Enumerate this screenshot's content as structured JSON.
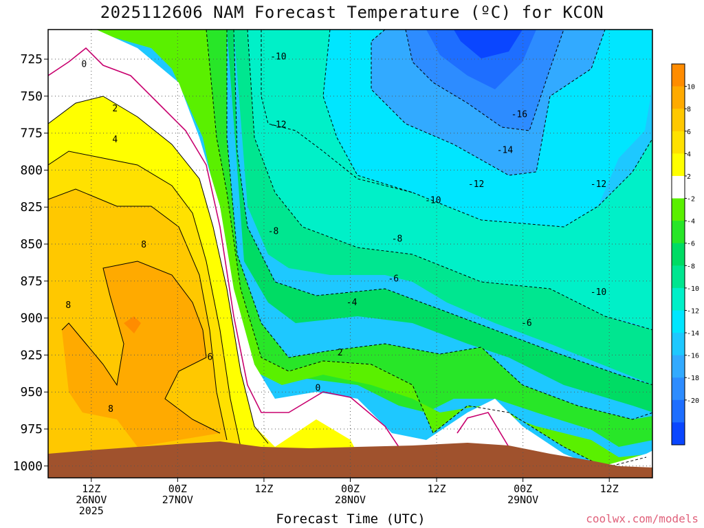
{
  "title": "2025112606 NAM Forecast Temperature (ºC) for KCON",
  "credit": "coolwx.com/models",
  "chart_data": {
    "type": "heatmap",
    "title": "2025112606 NAM Forecast Temperature (ºC) for KCON",
    "xlabel": "Forecast Time (UTC)",
    "ylabel": "",
    "y_scale": "pressure (hPa), inverted, top ~705, bottom ~1008",
    "x_ticks": [
      {
        "hour": 6,
        "lines": [
          "12Z",
          "26NOV",
          "2025"
        ]
      },
      {
        "hour": 18,
        "lines": [
          "00Z",
          "27NOV"
        ]
      },
      {
        "hour": 30,
        "lines": [
          "12Z"
        ]
      },
      {
        "hour": 42,
        "lines": [
          "00Z",
          "28NOV"
        ]
      },
      {
        "hour": 54,
        "lines": [
          "12Z"
        ]
      },
      {
        "hour": 66,
        "lines": [
          "00Z",
          "29NOV"
        ]
      },
      {
        "hour": 78,
        "lines": [
          "12Z"
        ]
      }
    ],
    "x_range_hours": [
      0,
      84
    ],
    "y_ticks": [
      725,
      750,
      775,
      800,
      825,
      850,
      875,
      900,
      925,
      950,
      975,
      1000
    ],
    "y_range": [
      705,
      1008
    ],
    "grid": true,
    "colorbar": {
      "levels": [
        -22,
        -20,
        -18,
        -16,
        -14,
        -12,
        -10,
        -8,
        -6,
        -4,
        -2,
        2,
        4,
        6,
        8,
        10,
        12
      ],
      "labels": [
        "-20",
        "-18",
        "-16",
        "-14",
        "-12",
        "-10",
        "-8",
        "-6",
        "-4",
        "-2",
        "2",
        "4",
        "6",
        "8",
        "10"
      ],
      "colors": [
        "#0a46ff",
        "#1e6eff",
        "#2d8cff",
        "#32aaff",
        "#1ec8ff",
        "#00e6ff",
        "#00f0c8",
        "#00e690",
        "#00dc64",
        "#28e628",
        "#5af000",
        "#ffffff",
        "#ffff00",
        "#ffe100",
        "#ffc800",
        "#ffaa00",
        "#ff8c00"
      ]
    },
    "ground_color": "#a0522d",
    "contour_labels": [
      {
        "text": "0",
        "hour": 5,
        "p": 728
      },
      {
        "text": "2",
        "hour": 9.3,
        "p": 758
      },
      {
        "text": "4",
        "hour": 9.3,
        "p": 779
      },
      {
        "text": "8",
        "hour": 13.3,
        "p": 850
      },
      {
        "text": "8",
        "hour": 2.8,
        "p": 891
      },
      {
        "text": "8",
        "hour": 8.7,
        "p": 961
      },
      {
        "text": "6",
        "hour": 22.5,
        "p": 926
      },
      {
        "text": "-10",
        "hour": 32,
        "p": 723
      },
      {
        "text": "-12",
        "hour": 32,
        "p": 769
      },
      {
        "text": "-8",
        "hour": 31.3,
        "p": 841
      },
      {
        "text": "0",
        "hour": 37.5,
        "p": 947
      },
      {
        "text": "2",
        "hour": 40.6,
        "p": 923
      },
      {
        "text": "-4",
        "hour": 42.2,
        "p": 889
      },
      {
        "text": "-6",
        "hour": 48,
        "p": 873
      },
      {
        "text": "-8",
        "hour": 48.5,
        "p": 846
      },
      {
        "text": "-10",
        "hour": 53.5,
        "p": 820
      },
      {
        "text": "-12",
        "hour": 59.5,
        "p": 809
      },
      {
        "text": "-14",
        "hour": 63.5,
        "p": 786
      },
      {
        "text": "-16",
        "hour": 65.5,
        "p": 762
      },
      {
        "text": "-6",
        "hour": 66.5,
        "p": 903
      },
      {
        "text": "-10",
        "hour": 76.5,
        "p": 882
      },
      {
        "text": "-12",
        "hour": 76.5,
        "p": 809
      }
    ],
    "freezing_line_color": "#c8006e"
  }
}
